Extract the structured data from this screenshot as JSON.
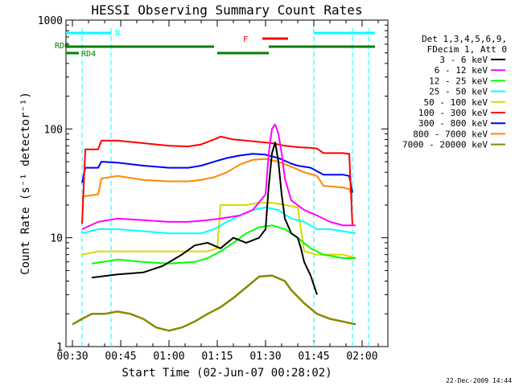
{
  "chart_data": {
    "type": "line",
    "title": "HESSI Observing Summary Count Rates",
    "xlabel": "Start Time (02-Jun-07 00:28:02)",
    "ylabel": "Count Rate (s⁻¹ detector⁻¹)",
    "yscale": "log",
    "ylim": [
      1,
      1000
    ],
    "xlim_minutes": [
      0,
      100
    ],
    "x_tick_labels": [
      {
        "label": "00:30",
        "minute": 2
      },
      {
        "label": "00:45",
        "minute": 17
      },
      {
        "label": "01:00",
        "minute": 32
      },
      {
        "label": "01:15",
        "minute": 47
      },
      {
        "label": "01:30",
        "minute": 62
      },
      {
        "label": "01:45",
        "minute": 77
      },
      {
        "label": "02:00",
        "minute": 92
      }
    ],
    "y_tick_labels": [
      {
        "label": "1",
        "value": 1
      },
      {
        "label": "10",
        "value": 10
      },
      {
        "label": "100",
        "value": 100
      },
      {
        "label": "1000",
        "value": 1000
      }
    ],
    "legend": {
      "position": "right",
      "header": [
        "Det 1,3,4,5,6,9,",
        "FDecim 1, Att 0"
      ],
      "entries": [
        {
          "label": "3 - 6 keV",
          "color": "#000000"
        },
        {
          "label": "6 - 12 keV",
          "color": "#ff00ff"
        },
        {
          "label": "12 - 25 keV",
          "color": "#00ff00"
        },
        {
          "label": "25 - 50 keV",
          "color": "#00ffff"
        },
        {
          "label": "50 - 100 keV",
          "color": "#d8d800"
        },
        {
          "label": "100 - 300 keV",
          "color": "#ff0000"
        },
        {
          "label": "300 - 800 keV",
          "color": "#0000ff"
        },
        {
          "label": "800 - 7000 keV",
          "color": "#ff8800"
        },
        {
          "label": "7000 - 20000 keV",
          "color": "#888800"
        }
      ]
    },
    "series": [
      {
        "name": "3 - 6 keV",
        "color": "#000000",
        "points": [
          [
            8,
            4.3
          ],
          [
            16,
            4.6
          ],
          [
            24,
            4.8
          ],
          [
            30,
            5.5
          ],
          [
            36,
            7
          ],
          [
            40,
            8.5
          ],
          [
            44,
            9
          ],
          [
            48,
            8
          ],
          [
            52,
            10
          ],
          [
            56,
            9
          ],
          [
            60,
            10
          ],
          [
            62,
            12
          ],
          [
            63,
            30
          ],
          [
            64,
            60
          ],
          [
            65,
            75
          ],
          [
            66,
            50
          ],
          [
            67,
            25
          ],
          [
            68,
            15
          ],
          [
            70,
            11
          ],
          [
            72,
            10
          ],
          [
            73,
            8
          ],
          [
            74,
            6
          ],
          [
            76,
            4.5
          ],
          [
            78,
            3
          ]
        ]
      },
      {
        "name": "6 - 12 keV",
        "color": "#ff00ff",
        "points": [
          [
            5,
            12
          ],
          [
            10,
            14
          ],
          [
            16,
            15
          ],
          [
            24,
            14.5
          ],
          [
            32,
            14
          ],
          [
            38,
            14
          ],
          [
            44,
            14.5
          ],
          [
            48,
            15
          ],
          [
            54,
            16
          ],
          [
            58,
            18
          ],
          [
            62,
            25
          ],
          [
            63,
            60
          ],
          [
            64,
            100
          ],
          [
            65,
            110
          ],
          [
            66,
            90
          ],
          [
            67,
            60
          ],
          [
            68,
            35
          ],
          [
            70,
            22
          ],
          [
            74,
            18
          ],
          [
            78,
            16
          ],
          [
            82,
            14
          ],
          [
            86,
            13
          ],
          [
            90,
            13
          ]
        ]
      },
      {
        "name": "12 - 25 keV",
        "color": "#00ff00",
        "points": [
          [
            8,
            5.8
          ],
          [
            16,
            6.3
          ],
          [
            24,
            6
          ],
          [
            32,
            5.8
          ],
          [
            40,
            6
          ],
          [
            44,
            6.5
          ],
          [
            48,
            7.5
          ],
          [
            52,
            9
          ],
          [
            56,
            11
          ],
          [
            60,
            12.5
          ],
          [
            64,
            13
          ],
          [
            68,
            12
          ],
          [
            72,
            10
          ],
          [
            76,
            8
          ],
          [
            80,
            7
          ],
          [
            86,
            6.5
          ],
          [
            90,
            6.5
          ]
        ]
      },
      {
        "name": "25 - 50 keV",
        "color": "#00ffff",
        "points": [
          [
            5,
            11
          ],
          [
            10,
            12
          ],
          [
            16,
            12
          ],
          [
            24,
            11.5
          ],
          [
            32,
            11
          ],
          [
            38,
            11
          ],
          [
            42,
            11
          ],
          [
            46,
            12
          ],
          [
            50,
            14
          ],
          [
            54,
            16
          ],
          [
            58,
            18
          ],
          [
            62,
            19
          ],
          [
            66,
            18
          ],
          [
            70,
            15
          ],
          [
            74,
            14
          ],
          [
            78,
            12
          ],
          [
            82,
            12
          ],
          [
            86,
            11.5
          ],
          [
            90,
            11
          ]
        ]
      },
      {
        "name": "50 - 100 keV",
        "color": "#d8d800",
        "points": [
          [
            5,
            7
          ],
          [
            10,
            7.5
          ],
          [
            16,
            7.5
          ],
          [
            24,
            7.5
          ],
          [
            32,
            7.5
          ],
          [
            38,
            7.5
          ],
          [
            44,
            7.5
          ],
          [
            47,
            8
          ],
          [
            48,
            20
          ],
          [
            52,
            20
          ],
          [
            56,
            20
          ],
          [
            60,
            21
          ],
          [
            64,
            21
          ],
          [
            68,
            20
          ],
          [
            72,
            19
          ],
          [
            74,
            7.5
          ],
          [
            78,
            7
          ],
          [
            82,
            7
          ],
          [
            86,
            7
          ],
          [
            90,
            6.5
          ]
        ]
      },
      {
        "name": "100 - 300 keV",
        "color": "#ff0000",
        "points": [
          [
            5,
            13.5
          ],
          [
            6,
            65
          ],
          [
            10,
            65
          ],
          [
            11,
            78
          ],
          [
            16,
            78
          ],
          [
            24,
            74
          ],
          [
            32,
            70
          ],
          [
            38,
            69
          ],
          [
            42,
            72
          ],
          [
            46,
            80
          ],
          [
            48,
            85
          ],
          [
            52,
            80
          ],
          [
            56,
            78
          ],
          [
            60,
            76
          ],
          [
            64,
            74
          ],
          [
            68,
            70
          ],
          [
            72,
            68
          ],
          [
            76,
            67
          ],
          [
            78,
            66
          ],
          [
            80,
            60
          ],
          [
            86,
            60
          ],
          [
            88,
            59
          ],
          [
            89,
            13
          ]
        ]
      },
      {
        "name": "300 - 800 keV",
        "color": "#0000ff",
        "points": [
          [
            5,
            32
          ],
          [
            6,
            44
          ],
          [
            10,
            44
          ],
          [
            11,
            50
          ],
          [
            16,
            49
          ],
          [
            24,
            46
          ],
          [
            32,
            44
          ],
          [
            38,
            44
          ],
          [
            42,
            46
          ],
          [
            46,
            50
          ],
          [
            50,
            54
          ],
          [
            54,
            57
          ],
          [
            58,
            59
          ],
          [
            62,
            58
          ],
          [
            66,
            54
          ],
          [
            70,
            48
          ],
          [
            72,
            46
          ],
          [
            76,
            44
          ],
          [
            80,
            38
          ],
          [
            86,
            38
          ],
          [
            88,
            37
          ],
          [
            89,
            26
          ]
        ]
      },
      {
        "name": "800 - 7000 keV",
        "color": "#ff8800",
        "points": [
          [
            5,
            24
          ],
          [
            10,
            25
          ],
          [
            11,
            35
          ],
          [
            16,
            37
          ],
          [
            24,
            34
          ],
          [
            32,
            33
          ],
          [
            38,
            33
          ],
          [
            42,
            34
          ],
          [
            46,
            36
          ],
          [
            50,
            40
          ],
          [
            54,
            47
          ],
          [
            58,
            52
          ],
          [
            62,
            53
          ],
          [
            66,
            50
          ],
          [
            70,
            45
          ],
          [
            74,
            40
          ],
          [
            78,
            37
          ],
          [
            80,
            30
          ],
          [
            86,
            29
          ],
          [
            88,
            28
          ],
          [
            89,
            24
          ]
        ]
      },
      {
        "name": "7000 - 20000 keV",
        "color": "#888800",
        "points": [
          [
            2,
            1.6
          ],
          [
            5,
            1.8
          ],
          [
            8,
            2
          ],
          [
            12,
            2
          ],
          [
            16,
            2.1
          ],
          [
            20,
            2
          ],
          [
            24,
            1.8
          ],
          [
            28,
            1.5
          ],
          [
            32,
            1.4
          ],
          [
            36,
            1.5
          ],
          [
            40,
            1.7
          ],
          [
            44,
            2
          ],
          [
            48,
            2.3
          ],
          [
            52,
            2.8
          ],
          [
            56,
            3.5
          ],
          [
            60,
            4.4
          ],
          [
            64,
            4.5
          ],
          [
            68,
            4
          ],
          [
            70,
            3.3
          ],
          [
            74,
            2.5
          ],
          [
            78,
            2
          ],
          [
            82,
            1.8
          ],
          [
            86,
            1.7
          ],
          [
            90,
            1.6
          ]
        ]
      }
    ],
    "annotations": {
      "N_label": "N",
      "F_label": "F",
      "RD0_label": "RD0",
      "RD4_label": "RD4",
      "night_color": "#00ffff",
      "flare_color": "#ff0000",
      "rd_color": "#008000",
      "night_intervals": [
        [
          0,
          14
        ],
        [
          77,
          96
        ]
      ],
      "flare_interval": [
        58,
        67
      ],
      "rd0_intervals": [
        [
          0,
          46
        ],
        [
          47,
          63
        ],
        [
          63,
          94
        ],
        [
          94,
          96
        ]
      ],
      "saa_boundaries": [
        5,
        14,
        77,
        89,
        94
      ]
    }
  },
  "footer": {
    "timestamp": "22-Dec-2009 14:44"
  }
}
